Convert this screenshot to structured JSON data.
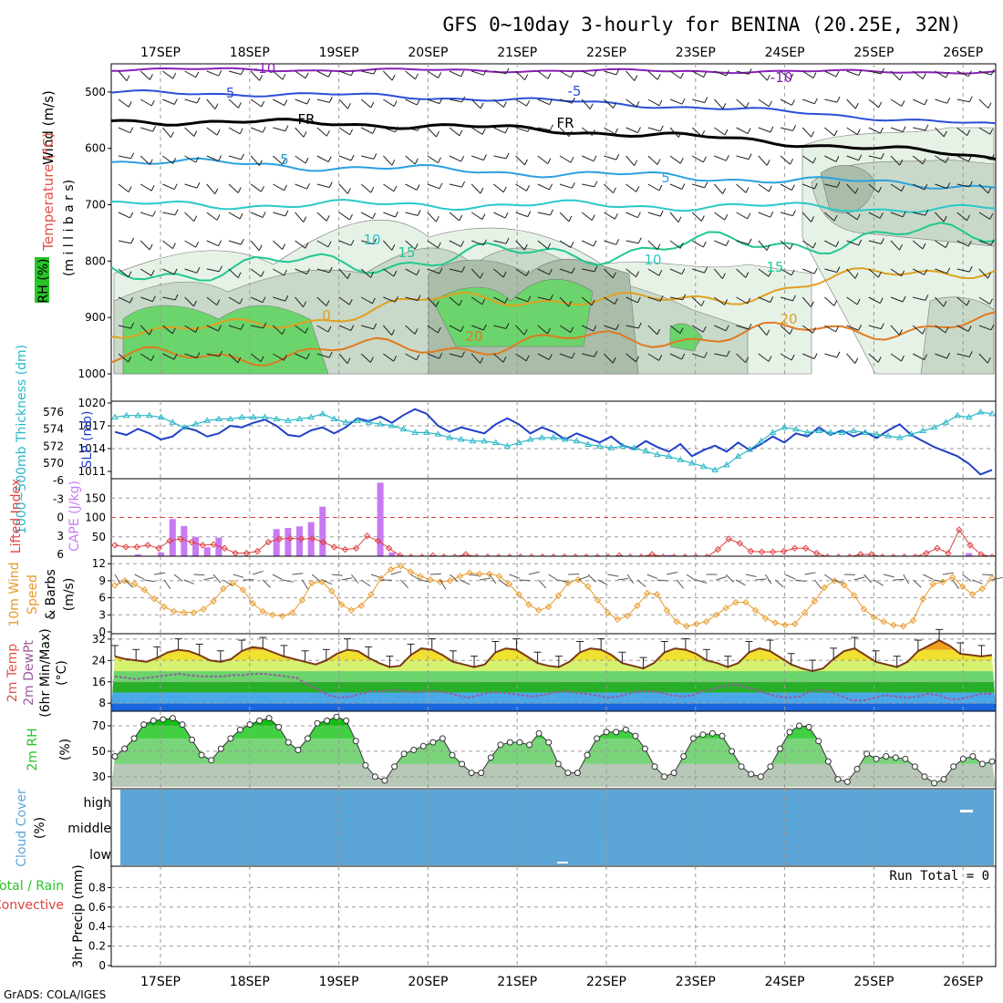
{
  "title": "GFS 0~10day 3-hourly for BENINA (20.25E, 32N)",
  "footer": "GrADS: COLA/IGES",
  "dates": [
    "17SEP",
    "18SEP",
    "19SEP",
    "20SEP",
    "21SEP",
    "22SEP",
    "23SEP",
    "24SEP",
    "25SEP",
    "26SEP"
  ],
  "colors": {
    "temp_label": "#e87a2a",
    "rh_label": "#27c427",
    "cape": "#c77af2",
    "lifted": "#e04040",
    "wind10": "#e89a2a",
    "cloud": "#5ba6d6",
    "thick": "#2ab8c8",
    "slp": "#2040c8"
  },
  "chart_data": [
    {
      "id": "upper",
      "type": "contour",
      "ylabel_parts": {
        "wind": "Wind (m/s)",
        "temp": "Temperature (°C)",
        "rh": "RH (%)",
        "unit": "(m i l l i b a r s)"
      },
      "ylim": [
        1000,
        450
      ],
      "yticks": [
        "500",
        "600",
        "700",
        "800",
        "900",
        "1000"
      ],
      "isotherm_labels": [
        "-10",
        "-5",
        "FR",
        "5",
        "10",
        "15",
        "0",
        "20",
        "-10",
        "-5",
        "FR",
        "5",
        "15",
        "20",
        "10"
      ]
    },
    {
      "id": "slp_thick",
      "type": "line",
      "ylabel_left": "1000~500mb Thickness (dm)",
      "ylabel_right": "SLP (mb)",
      "left_ticks": [
        "576",
        "574",
        "572",
        "570"
      ],
      "right_ticks": [
        "1020",
        "1017",
        "1014",
        "1011"
      ],
      "series": [
        {
          "name": "SLP (mb)",
          "values": [
            1016.2,
            1015.8,
            1016.6,
            1016.0,
            1015.2,
            1015.6,
            1016.8,
            1016.4,
            1015.6,
            1016.0,
            1017.0,
            1016.8,
            1017.4,
            1017.8,
            1017.0,
            1015.8,
            1015.6,
            1016.4,
            1016.8,
            1016.0,
            1016.8,
            1018.0,
            1017.6,
            1018.2,
            1017.4,
            1018.4,
            1019.2,
            1018.6,
            1017.0,
            1016.2,
            1016.8,
            1016.4,
            1016.0,
            1017.2,
            1018.0,
            1017.2,
            1016.0,
            1016.8,
            1016.2,
            1015.2,
            1016.0,
            1015.4,
            1014.8,
            1015.6,
            1014.4,
            1014.0,
            1015.0,
            1014.2,
            1013.6,
            1014.6,
            1013.0,
            1013.8,
            1014.4,
            1013.6,
            1014.8,
            1013.8,
            1014.6,
            1015.6,
            1014.8,
            1016.0,
            1015.6,
            1016.8,
            1015.8,
            1016.4,
            1015.6,
            1016.2,
            1015.4,
            1016.4,
            1017.2,
            1015.8,
            1015.0,
            1014.2,
            1013.6,
            1013.0,
            1012.0,
            1010.6,
            1011.2
          ]
        },
        {
          "name": "1000~500mb Thickness (dm)",
          "values": [
            575.4,
            575.6,
            575.6,
            575.6,
            575.4,
            574.8,
            574.2,
            574.6,
            575.0,
            575.2,
            575.2,
            575.4,
            575.4,
            575.4,
            575.2,
            575.0,
            575.2,
            575.4,
            575.8,
            575.2,
            574.8,
            575.0,
            574.8,
            574.6,
            574.4,
            574.0,
            573.6,
            573.6,
            573.4,
            573.0,
            572.8,
            572.6,
            572.6,
            572.4,
            572.0,
            572.4,
            572.8,
            573.0,
            573.0,
            572.8,
            572.6,
            572.2,
            572.0,
            571.8,
            572.0,
            571.8,
            571.4,
            571.0,
            570.8,
            570.4,
            570.0,
            569.6,
            569.2,
            569.8,
            570.8,
            571.6,
            572.6,
            573.6,
            574.2,
            574.0,
            573.6,
            573.8,
            573.6,
            573.6,
            573.8,
            573.6,
            573.4,
            573.2,
            573.0,
            573.4,
            573.8,
            574.2,
            574.8,
            575.6,
            575.4,
            576.0,
            575.8
          ]
        }
      ]
    },
    {
      "id": "cape_li",
      "type": "bar",
      "ylabel_left": "Lifted Index",
      "ylabel_right": "CAPE (J/kg)",
      "left_ticks": [
        "-6",
        "-3",
        "0",
        "3",
        "6"
      ],
      "right_ticks": [
        "150",
        "100",
        "50"
      ],
      "ylim": [
        0,
        200
      ],
      "series": [
        {
          "name": "CAPE (J/kg)",
          "values": [
            0,
            0,
            5,
            0,
            10,
            96,
            78,
            50,
            23,
            48,
            0,
            0,
            0,
            0,
            70,
            73,
            77,
            88,
            128,
            0,
            0,
            0,
            0,
            190,
            10,
            0,
            0,
            0,
            0,
            0,
            0,
            0,
            0,
            0,
            0,
            0,
            0,
            0,
            0,
            0,
            0,
            0,
            0,
            0,
            0,
            0,
            0,
            3,
            3,
            0,
            0,
            0,
            0,
            0,
            0,
            0,
            0,
            0,
            0,
            0,
            0,
            0,
            0,
            0,
            0,
            0,
            0,
            0,
            0,
            0,
            0,
            0,
            0,
            0,
            8,
            0,
            0
          ]
        },
        {
          "name": "Lifted Index",
          "values": [
            4.5,
            4.8,
            4.8,
            4.5,
            5.0,
            3.8,
            3.5,
            4.0,
            4.5,
            4.4,
            5.0,
            5.8,
            5.8,
            5.5,
            4.0,
            3.5,
            3.4,
            3.5,
            3.4,
            4.0,
            4.8,
            5.2,
            5.0,
            3.0,
            3.8,
            5.0,
            6.2,
            6.4,
            6.4,
            6.2,
            6.4,
            6.4,
            6.0,
            6.4,
            6.4,
            6.4,
            6.4,
            6.4,
            6.4,
            6.4,
            6.4,
            6.4,
            6.4,
            6.4,
            6.4,
            6.4,
            6.2,
            6.4,
            6.4,
            6.0,
            6.4,
            6.4,
            6.4,
            6.4,
            6.4,
            5.2,
            3.5,
            4.2,
            5.5,
            5.6,
            5.6,
            5.5,
            5.0,
            5.0,
            5.8,
            6.4,
            6.4,
            6.4,
            6.0,
            6.0,
            6.4,
            6.4,
            6.4,
            6.4,
            5.8,
            5.0,
            5.8,
            2.0,
            4.5,
            6.0,
            6.4
          ]
        }
      ]
    },
    {
      "id": "wind10",
      "type": "line",
      "ylabel_lines": [
        "10m Wind",
        "Speed",
        "& Barbs",
        "(m/s)"
      ],
      "ticks": [
        "12",
        "9",
        "6",
        "3",
        "0"
      ],
      "ylim": [
        0,
        13
      ],
      "series": [
        {
          "name": "10m Wind Speed",
          "values": [
            8.2,
            9.0,
            8.4,
            7.4,
            5.8,
            4.4,
            3.6,
            3.4,
            3.4,
            4.0,
            5.4,
            7.6,
            8.6,
            7.4,
            5.0,
            3.6,
            3.0,
            2.8,
            3.4,
            5.6,
            8.6,
            8.8,
            7.2,
            4.8,
            3.8,
            4.6,
            6.6,
            9.4,
            11.0,
            11.6,
            10.6,
            9.8,
            9.2,
            8.8,
            9.0,
            9.8,
            10.4,
            10.2,
            10.2,
            9.8,
            8.4,
            6.6,
            4.8,
            3.8,
            4.4,
            6.4,
            8.6,
            9.2,
            8.0,
            5.6,
            3.4,
            2.2,
            2.8,
            4.6,
            6.8,
            6.6,
            3.8,
            1.8,
            1.0,
            1.4,
            1.8,
            3.0,
            4.2,
            5.2,
            5.2,
            3.8,
            2.4,
            1.6,
            1.2,
            1.4,
            3.4,
            5.4,
            7.8,
            9.0,
            8.2,
            6.4,
            4.0,
            2.6,
            1.8,
            1.2,
            1.0,
            2.0,
            5.8,
            8.4,
            8.8,
            9.6,
            8.0,
            6.6,
            7.6,
            9.4
          ]
        }
      ]
    },
    {
      "id": "temp2m",
      "type": "area",
      "ylabel_lines": [
        "2m Temp",
        "2m DewPt",
        "(6hr Min/Max)",
        "(°C)"
      ],
      "ticks": [
        "32",
        "24",
        "16",
        "8"
      ],
      "ylim": [
        5,
        34
      ],
      "series": [
        {
          "name": "2m Temp",
          "values": [
            25.5,
            24.5,
            24.0,
            23.5,
            25.0,
            27.0,
            28.0,
            27.5,
            26.0,
            24.0,
            23.5,
            24.5,
            27.5,
            29.0,
            28.5,
            27.0,
            25.5,
            24.5,
            23.5,
            22.5,
            24.0,
            26.5,
            28.0,
            27.5,
            25.0,
            23.0,
            21.5,
            22.0,
            26.0,
            28.5,
            28.0,
            26.0,
            23.5,
            22.5,
            21.5,
            22.5,
            27.0,
            28.5,
            28.0,
            25.5,
            23.0,
            22.0,
            21.5,
            23.5,
            27.0,
            28.5,
            28.0,
            26.0,
            23.0,
            22.0,
            21.0,
            23.0,
            27.0,
            28.5,
            28.0,
            26.5,
            24.0,
            23.0,
            21.5,
            23.0,
            27.0,
            28.5,
            27.5,
            25.0,
            22.5,
            21.0,
            20.0,
            21.0,
            24.5,
            27.5,
            28.5,
            26.0,
            23.5,
            22.5,
            21.5,
            23.5,
            27.5,
            29.5,
            31.5,
            29.5,
            26.5,
            26.0,
            25.5,
            26.0
          ]
        },
        {
          "name": "2m DewPt",
          "values": [
            18.0,
            17.5,
            17.0,
            17.5,
            18.0,
            18.5,
            19.0,
            18.5,
            18.0,
            18.0,
            18.0,
            18.5,
            18.5,
            19.0,
            19.0,
            18.5,
            18.0,
            17.5,
            15.0,
            13.0,
            11.0,
            10.0,
            10.5,
            11.5,
            12.5,
            12.5,
            13.0,
            12.5,
            12.0,
            12.5,
            12.5,
            12.0,
            11.0,
            10.0,
            11.0,
            12.0,
            12.0,
            11.5,
            11.0,
            10.5,
            11.0,
            12.0,
            12.5,
            12.0,
            11.5,
            11.0,
            10.0,
            10.5,
            11.5,
            12.5,
            12.5,
            12.0,
            11.0,
            10.5,
            11.0,
            12.5,
            13.5,
            14.5,
            15.0,
            14.0,
            13.0,
            11.5,
            10.5,
            10.0,
            10.5,
            12.5,
            13.0,
            12.0,
            10.5,
            9.0,
            9.0,
            10.0,
            11.0,
            10.5,
            10.0,
            10.5,
            11.5,
            11.0,
            9.5,
            9.5,
            10.5,
            11.5,
            11.5
          ]
        }
      ]
    },
    {
      "id": "rh2m",
      "type": "area",
      "ylabel": "2m RH",
      "unit": "(%)",
      "ticks": [
        "70",
        "50",
        "30"
      ],
      "ylim": [
        22,
        80
      ],
      "series": [
        {
          "name": "2m RH",
          "values": [
            46,
            52,
            60,
            71,
            74,
            75,
            76,
            71,
            59,
            47,
            43,
            52,
            60,
            67,
            71,
            74,
            76,
            69,
            57,
            51,
            60,
            72,
            74,
            77,
            74,
            58,
            39,
            30,
            27,
            38,
            48,
            51,
            54,
            57,
            60,
            47,
            40,
            33,
            33,
            45,
            55,
            57,
            57,
            55,
            64,
            57,
            40,
            33,
            33,
            47,
            60,
            65,
            65,
            67,
            62,
            52,
            38,
            30,
            33,
            46,
            60,
            63,
            64,
            62,
            50,
            38,
            32,
            30,
            38,
            52,
            65,
            70,
            69,
            58,
            42,
            28,
            26,
            36,
            48,
            44,
            46,
            45,
            44,
            38,
            30,
            25,
            28,
            38,
            44,
            46,
            40,
            42
          ]
        }
      ]
    },
    {
      "id": "cloud",
      "type": "heatmap",
      "ylabel": "Cloud Cover",
      "unit": "(%)",
      "levels": [
        "high",
        "middle",
        "low"
      ]
    },
    {
      "id": "precip",
      "type": "bar",
      "ylabel_left_a": "Total / Rain",
      "ylabel_left_b": "Convective",
      "ylabel": "3hr Precip (mm)",
      "ticks": [
        "0.8",
        "0.6",
        "0.4",
        "0.2",
        "0"
      ],
      "ylim": [
        0,
        1.0
      ],
      "run_total": "Run Total = 0"
    }
  ]
}
